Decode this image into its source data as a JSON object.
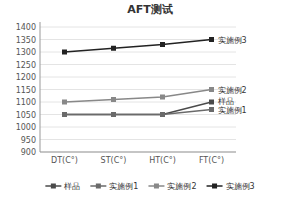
{
  "chart_data": {
    "type": "line",
    "title": "AFT测试",
    "categories": [
      "DT(C°)",
      "ST(C°)",
      "HT(C°)",
      "FT(C°)"
    ],
    "series": [
      {
        "name": "样品",
        "color": "#4a4a4a",
        "marker": "square",
        "values": [
          1050,
          1050,
          1050,
          1100
        ]
      },
      {
        "name": "实施例1",
        "color": "#6a6a6a",
        "marker": "square",
        "values": [
          1050,
          1050,
          1050,
          1070
        ]
      },
      {
        "name": "实施例2",
        "color": "#888888",
        "marker": "square",
        "values": [
          1100,
          1110,
          1120,
          1150
        ]
      },
      {
        "name": "实施例3",
        "color": "#222222",
        "marker": "square",
        "values": [
          1300,
          1315,
          1330,
          1350
        ]
      }
    ],
    "annotations": [
      {
        "text": "实施例3",
        "x": "FT(C°)",
        "y": 1350
      },
      {
        "text": "实施例2",
        "x": "FT(C°)",
        "y": 1150
      },
      {
        "text": "样品",
        "x": "FT(C°)",
        "y": 1100
      },
      {
        "text": "实施例1",
        "x": "FT(C°)",
        "y": 1070
      }
    ],
    "ylim": [
      900,
      1420
    ],
    "yticks": [
      900,
      950,
      1000,
      1050,
      1100,
      1150,
      1200,
      1250,
      1300,
      1350,
      1400
    ],
    "grid": true,
    "legend": "bottom"
  }
}
